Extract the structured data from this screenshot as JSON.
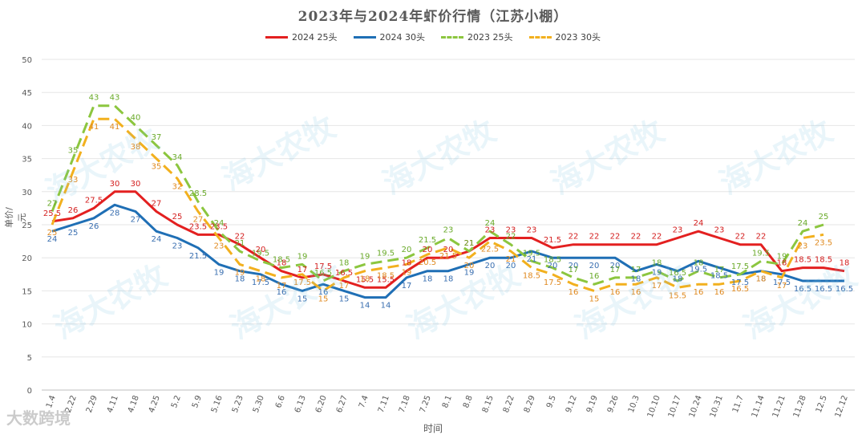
{
  "chart_data": {
    "type": "line",
    "title": "2023年与2024年虾价行情（江苏小棚）",
    "xlabel": "时间",
    "ylabel": "单价/元",
    "ylim": [
      0,
      50
    ],
    "yticks": [
      0,
      5,
      10,
      15,
      20,
      25,
      30,
      35,
      40,
      45,
      50
    ],
    "grid": "y",
    "legend_position": "top",
    "categories": [
      "1.4",
      "2.22",
      "2.29",
      "4.11",
      "4.18",
      "4.25",
      "5.2",
      "5.9",
      "5.16",
      "5.23",
      "5.30",
      "6.6",
      "6.13",
      "6.20",
      "6.27",
      "7.4",
      "7.11",
      "7.18",
      "7.25",
      "8.1",
      "8.8",
      "8.15",
      "8.22",
      "8.29",
      "9.5",
      "9.12",
      "9.19",
      "9.26",
      "10.3",
      "10.10",
      "10.17",
      "10.24",
      "10.31",
      "11.7",
      "11.14",
      "11.21",
      "11.28",
      "12.5",
      "12.12"
    ],
    "series": [
      {
        "name": "2024 25头",
        "color": "#e32020",
        "dash": "solid",
        "values": [
          25.5,
          26,
          27.5,
          30,
          30,
          27,
          25,
          23.5,
          23.5,
          22,
          20,
          18,
          17,
          17.5,
          16.5,
          15.5,
          15.5,
          18,
          20,
          20,
          21,
          23,
          23,
          23,
          21.5,
          22,
          22,
          22,
          22,
          22,
          23,
          24,
          23,
          22,
          22,
          18,
          18.5,
          18.5,
          18
        ]
      },
      {
        "name": "2024 30头",
        "color": "#1f6fb5",
        "dash": "solid",
        "values": [
          24,
          25,
          26,
          28,
          27,
          24,
          23,
          21.5,
          19,
          18,
          17.5,
          16,
          15,
          16,
          15,
          14,
          14,
          17,
          18,
          18,
          19,
          20,
          20,
          21,
          20,
          20,
          20,
          20,
          18,
          19,
          18,
          19.5,
          18.5,
          17.5,
          18,
          17.5,
          16.5,
          16.5,
          16.5
        ]
      },
      {
        "name": "2023 25头",
        "color": "#8cc63f",
        "dash": "dash",
        "values": [
          27,
          35,
          43,
          43,
          40,
          37,
          34,
          28.5,
          24,
          21,
          19.5,
          18.5,
          19,
          16.5,
          18,
          19,
          19.5,
          20,
          21.5,
          23,
          21,
          24,
          22,
          19.5,
          18.5,
          17,
          16,
          17,
          17,
          18,
          16.5,
          18,
          17,
          17.5,
          19.5,
          19,
          24,
          25,
          null
        ]
      },
      {
        "name": "2023 30头",
        "color": "#f2b01e",
        "dash": "dash",
        "values": [
          25,
          33,
          41,
          41,
          38,
          35,
          32,
          27,
          23,
          19,
          18,
          17,
          17.5,
          15,
          17,
          18,
          18.5,
          19,
          20.5,
          21.5,
          20,
          22.5,
          21,
          18.5,
          17.5,
          16,
          15,
          16,
          16,
          17,
          15.5,
          16,
          16,
          16.5,
          18,
          17,
          23,
          23.5,
          null
        ]
      }
    ]
  },
  "watermark": {
    "text": "海大农牧",
    "corner": "大数跨境"
  }
}
